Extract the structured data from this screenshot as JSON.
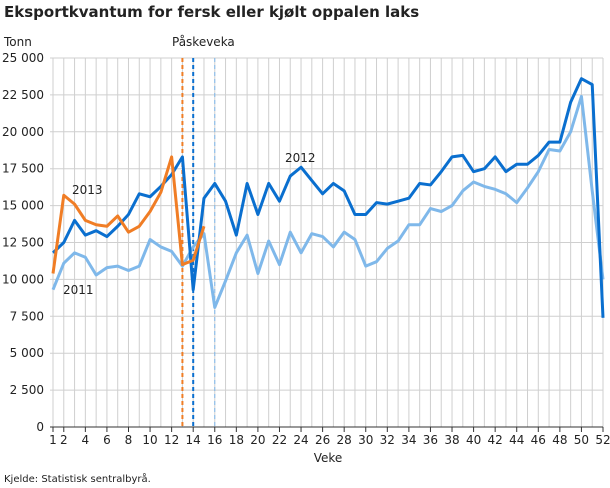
{
  "chart_data": {
    "type": "line",
    "title": "Eksportkvantum for fersk eller kjølt oppalen laks",
    "ylabel": "Tonn",
    "xlabel": "Veke",
    "source": "Kjelde: Statistisk sentralbyrå.",
    "ylim": [
      0,
      25000
    ],
    "xlim": [
      1,
      52
    ],
    "grid": true,
    "y_ticks": [
      0,
      2500,
      5000,
      7500,
      10000,
      12500,
      15000,
      17500,
      20000,
      22500,
      25000
    ],
    "y_tick_labels": [
      "0",
      "2 500",
      "5 000",
      "7 500",
      "10 000",
      "12 500",
      "15 000",
      "17 500",
      "20 000",
      "22 500",
      "25 000"
    ],
    "x_ticks": [
      1,
      2,
      4,
      6,
      8,
      10,
      12,
      14,
      16,
      18,
      20,
      22,
      24,
      26,
      28,
      30,
      32,
      34,
      36,
      38,
      40,
      42,
      44,
      46,
      48,
      50,
      52
    ],
    "annotation": "Påskeveka",
    "easter_weeks": [
      {
        "series": "2011",
        "week": 16,
        "color": "#7fb8ea"
      },
      {
        "series": "2012",
        "week": 14,
        "color": "#0a6fcf"
      },
      {
        "series": "2013",
        "week": 13,
        "color": "#f07d25"
      }
    ],
    "series": [
      {
        "name": "2011",
        "color": "#7fb8ea",
        "values": [
          9300,
          11100,
          11800,
          11500,
          10300,
          10800,
          10900,
          10600,
          10900,
          12700,
          12200,
          11900,
          10900,
          12200,
          13100,
          8100,
          9900,
          11800,
          13000,
          10400,
          12600,
          11000,
          13200,
          11800,
          13100,
          12900,
          12200,
          13200,
          12700,
          10900,
          11200,
          12100,
          12600,
          13700,
          13700,
          14800,
          14600,
          15000,
          16000,
          16600,
          16300,
          16100,
          15800,
          15200,
          16200,
          17300,
          18800,
          18700,
          20000,
          22400,
          16000,
          10000
        ]
      },
      {
        "name": "2012",
        "color": "#0a6fcf",
        "values": [
          11800,
          12500,
          14000,
          13000,
          13300,
          12900,
          13600,
          14400,
          15800,
          15600,
          16300,
          17100,
          18300,
          9300,
          15500,
          16500,
          15300,
          13000,
          16500,
          14400,
          16500,
          15300,
          17000,
          17600,
          16700,
          15800,
          16500,
          16000,
          14400,
          14400,
          15200,
          15100,
          15300,
          15500,
          16500,
          16400,
          17300,
          18300,
          18400,
          17300,
          17500,
          18300,
          17300,
          17800,
          17800,
          18400,
          19300,
          19300,
          22000,
          23600,
          23200,
          7400
        ]
      },
      {
        "name": "2013",
        "color": "#f07d25",
        "values": [
          10400,
          15700,
          15100,
          14000,
          13700,
          13600,
          14300,
          13200,
          13600,
          14600,
          15900,
          18300,
          11000,
          11300,
          13600
        ]
      }
    ]
  }
}
